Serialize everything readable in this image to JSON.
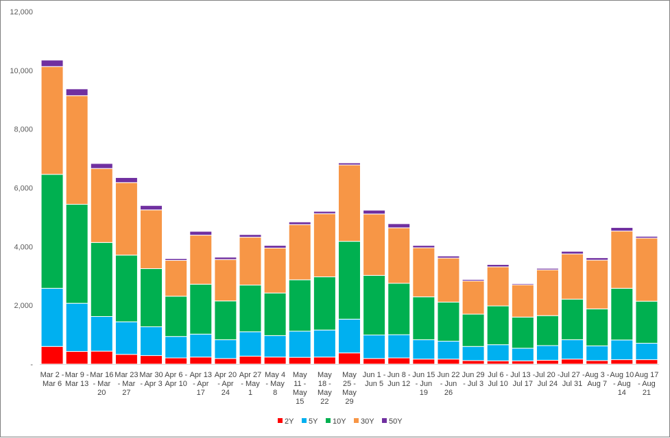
{
  "chart_data": {
    "type": "bar",
    "stacked": true,
    "title": "",
    "xlabel": "",
    "ylabel": "",
    "ylim": [
      0,
      12000
    ],
    "yticks": [
      0,
      2000,
      4000,
      6000,
      8000,
      10000,
      12000
    ],
    "ytick_labels": [
      "-",
      "2,000",
      "4,000",
      "6,000",
      "8,000",
      "10,000",
      "12,000"
    ],
    "grid": false,
    "legend_position": "bottom",
    "categories": [
      [
        "Mar 2 -",
        "Mar 6"
      ],
      [
        "Mar 9 -",
        "Mar 13"
      ],
      [
        "Mar 16",
        "- Mar",
        "20"
      ],
      [
        "Mar 23",
        "- Mar",
        "27"
      ],
      [
        "Mar 30",
        "- Apr 3"
      ],
      [
        "Apr 6 -",
        "Apr 10"
      ],
      [
        "Apr 13",
        "- Apr",
        "17"
      ],
      [
        "Apr 20",
        "- Apr",
        "24"
      ],
      [
        "Apr 27",
        "- May",
        "1"
      ],
      [
        "May 4",
        "- May",
        "8"
      ],
      [
        "May",
        "11 -",
        "May",
        "15"
      ],
      [
        "May",
        "18 -",
        "May",
        "22"
      ],
      [
        "May",
        "25 -",
        "May",
        "29"
      ],
      [
        "Jun 1 -",
        "Jun 5"
      ],
      [
        "Jun 8 -",
        "Jun 12"
      ],
      [
        "Jun 15",
        "- Jun",
        "19"
      ],
      [
        "Jun 22",
        "- Jun",
        "26"
      ],
      [
        "Jun 29",
        "- Jul 3"
      ],
      [
        "Jul 6 -",
        "Jul 10"
      ],
      [
        "Jul 13 -",
        "Jul 17"
      ],
      [
        "Jul 20 -",
        "Jul 24"
      ],
      [
        "Jul 27 -",
        "Jul 31"
      ],
      [
        "Aug 3 -",
        "Aug 7"
      ],
      [
        "Aug 10",
        "- Aug",
        "14"
      ],
      [
        "Aug 17",
        "- Aug",
        "21"
      ]
    ],
    "series": [
      {
        "name": "2Y",
        "color": "#ff0000",
        "values": [
          600,
          430,
          440,
          330,
          290,
          210,
          240,
          190,
          270,
          240,
          230,
          240,
          380,
          190,
          210,
          170,
          170,
          120,
          110,
          110,
          130,
          170,
          120,
          150,
          150
        ]
      },
      {
        "name": "5Y",
        "color": "#00b0f0",
        "values": [
          1980,
          1640,
          1180,
          1110,
          980,
          730,
          780,
          640,
          830,
          730,
          890,
          920,
          1150,
          800,
          790,
          660,
          610,
          480,
          550,
          430,
          500,
          660,
          500,
          670,
          560
        ]
      },
      {
        "name": "10Y",
        "color": "#00b050",
        "values": [
          3880,
          3370,
          2520,
          2270,
          1980,
          1370,
          1700,
          1320,
          1590,
          1450,
          1750,
          1810,
          2650,
          2030,
          1750,
          1460,
          1330,
          1100,
          1320,
          1060,
          1020,
          1380,
          1260,
          1760,
          1430
        ]
      },
      {
        "name": "30Y",
        "color": "#f79646",
        "values": [
          3670,
          3700,
          2520,
          2470,
          2000,
          1220,
          1670,
          1410,
          1630,
          1530,
          1880,
          2150,
          2600,
          2090,
          1890,
          1670,
          1500,
          1130,
          1330,
          1100,
          1560,
          1540,
          1660,
          1950,
          2150
        ]
      },
      {
        "name": "50Y",
        "color": "#7030a0",
        "values": [
          220,
          230,
          170,
          170,
          150,
          60,
          130,
          80,
          90,
          90,
          90,
          80,
          70,
          130,
          140,
          80,
          70,
          50,
          80,
          40,
          50,
          90,
          80,
          120,
          60
        ]
      }
    ]
  }
}
